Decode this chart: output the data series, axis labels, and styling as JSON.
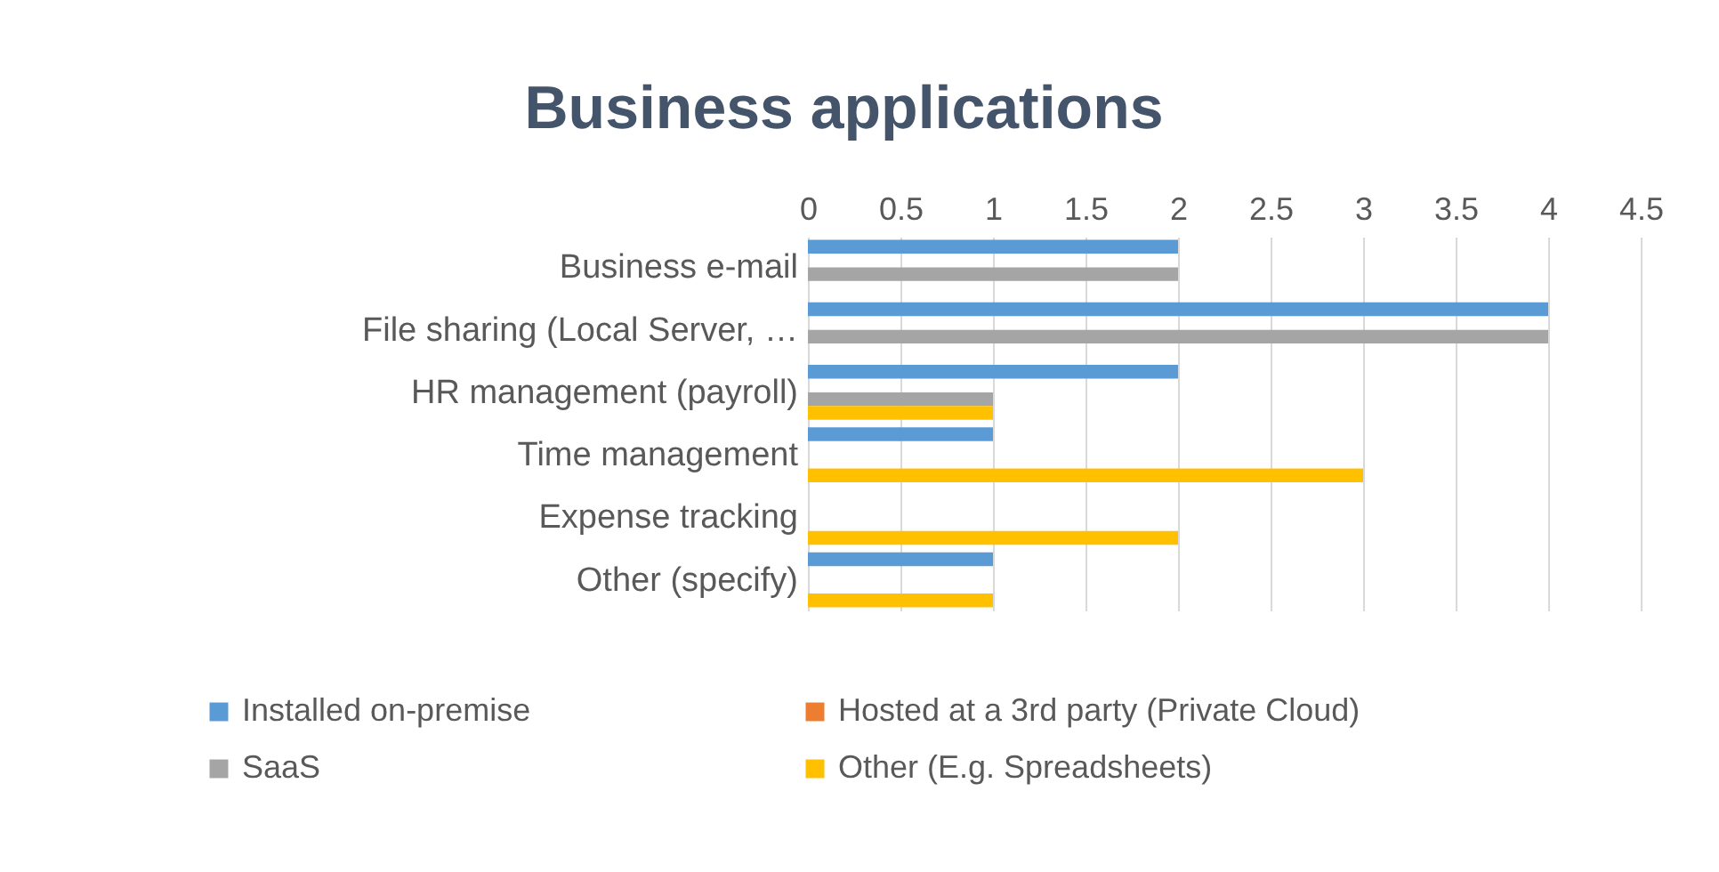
{
  "chart_data": {
    "type": "bar",
    "orientation": "horizontal",
    "title": "Business applications",
    "categories": [
      "Business e-mail",
      "File sharing (Local Server, …",
      "HR management (payroll)",
      "Time management",
      "Expense tracking",
      "Other (specify)"
    ],
    "series": [
      {
        "name": "Installed on-premise",
        "color": "#5b9bd5",
        "values": [
          2,
          4,
          2,
          1,
          null,
          1
        ]
      },
      {
        "name": "Hosted at a 3rd party (Private Cloud)",
        "color": "#ed7d31",
        "values": [
          null,
          null,
          null,
          null,
          null,
          null
        ]
      },
      {
        "name": "SaaS",
        "color": "#a5a5a5",
        "values": [
          2,
          4,
          1,
          null,
          null,
          null
        ]
      },
      {
        "name": "Other (E.g. Spreadsheets)",
        "color": "#ffc000",
        "values": [
          null,
          null,
          1,
          3,
          2,
          1
        ]
      }
    ],
    "xlim": [
      0,
      4.5
    ],
    "xticks": [
      0,
      0.5,
      1,
      1.5,
      2,
      2.5,
      3,
      3.5,
      4,
      4.5
    ],
    "grid": "x",
    "legend": "bottom"
  }
}
